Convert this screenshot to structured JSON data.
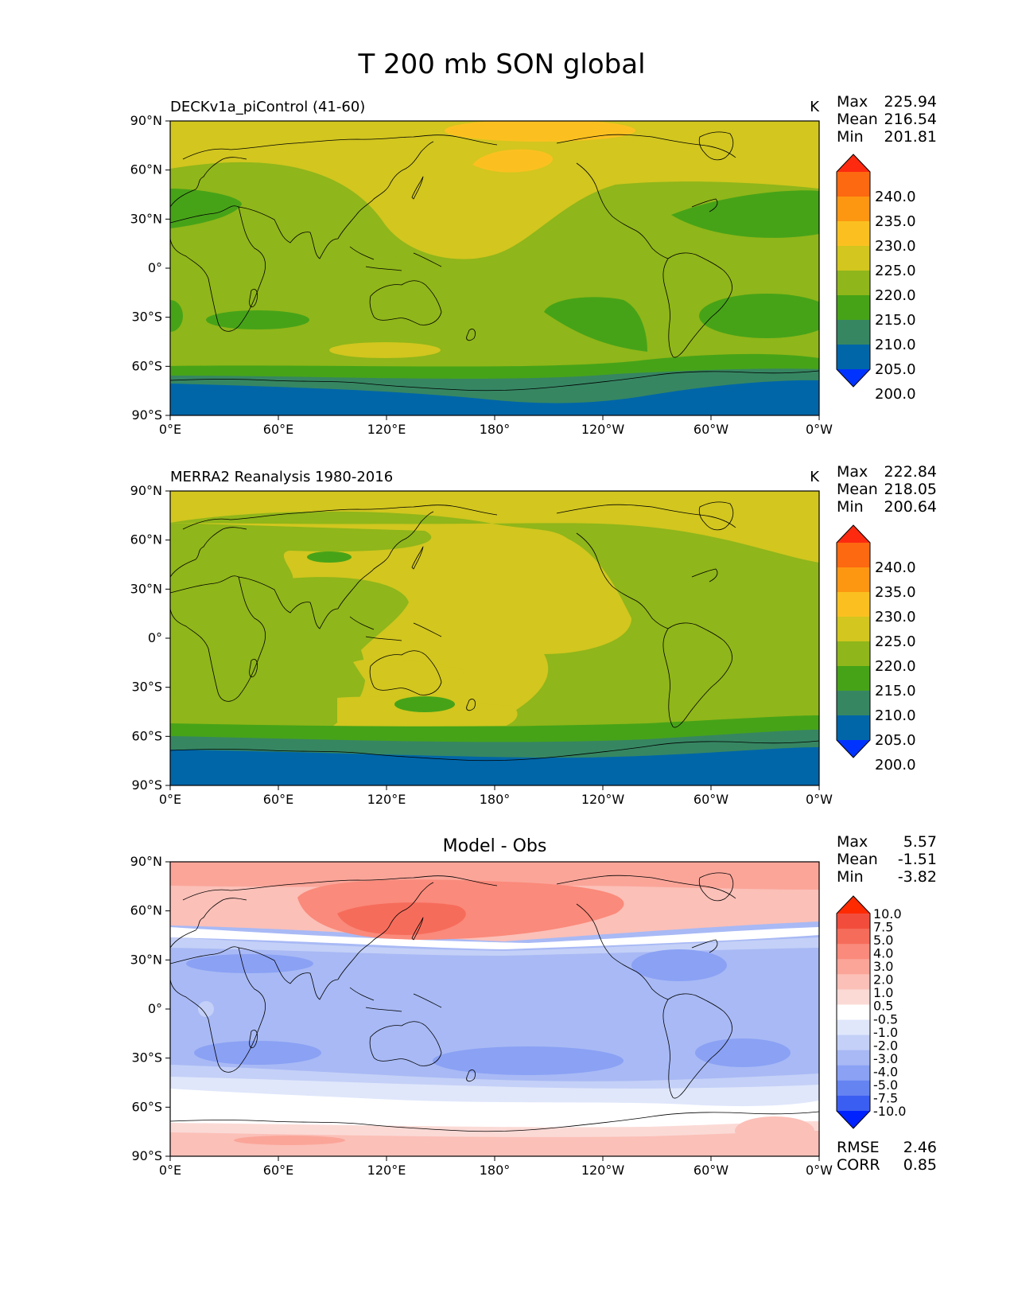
{
  "title": "T 200 mb SON global",
  "x_ticks": [
    "0°E",
    "60°E",
    "120°E",
    "180°",
    "120°W",
    "60°W",
    "0°W"
  ],
  "y_ticks": [
    "90°N",
    "60°N",
    "30°N",
    "0°",
    "30°S",
    "60°S",
    "90°S"
  ],
  "stat_labels": {
    "max": "Max",
    "mean": "Mean",
    "min": "Min",
    "rmse": "RMSE",
    "corr": "CORR"
  },
  "colors": {
    "abs_levels": [
      "#0033ff",
      "#0066a8",
      "#368662",
      "#46a318",
      "#8fb61a",
      "#d2c61f",
      "#fbc020",
      "#fd9712",
      "#fd6910",
      "#fd2a10"
    ],
    "diff_levels": [
      "#0022ff",
      "#3b5ef2",
      "#6584f2",
      "#8aa1f4",
      "#a8b9f5",
      "#c4d0f7",
      "#e0e7fb",
      "#ffffff",
      "#fbdad6",
      "#fbc0b8",
      "#fba599",
      "#fa8a7b",
      "#f66c5b",
      "#f24d3c",
      "#ff2a00"
    ],
    "coast": "#000000"
  },
  "panels": [
    {
      "id": "model",
      "title": "DECKv1a_piControl (41-60)",
      "units": "K",
      "stats": {
        "max": "225.94",
        "mean": "216.54",
        "min": "201.81"
      },
      "colorbar_labels": [
        "240.0",
        "235.0",
        "230.0",
        "225.0",
        "220.0",
        "215.0",
        "210.0",
        "205.0",
        "200.0"
      ]
    },
    {
      "id": "obs",
      "title": "MERRA2 Reanalysis 1980-2016",
      "units": "K",
      "stats": {
        "max": "222.84",
        "mean": "218.05",
        "min": "200.64"
      },
      "colorbar_labels": [
        "240.0",
        "235.0",
        "230.0",
        "225.0",
        "220.0",
        "215.0",
        "210.0",
        "205.0",
        "200.0"
      ]
    },
    {
      "id": "diff",
      "title": "Model - Obs",
      "units": "",
      "stats": {
        "max": "5.57",
        "mean": "-1.51",
        "min": "-3.82",
        "rmse": "2.46",
        "corr": "0.85"
      },
      "colorbar_labels": [
        "10.0",
        "7.5",
        "5.0",
        "4.0",
        "3.0",
        "2.0",
        "1.0",
        "0.5",
        "-0.5",
        "-1.0",
        "-2.0",
        "-3.0",
        "-4.0",
        "-5.0",
        "-7.5",
        "-10.0"
      ]
    }
  ]
}
